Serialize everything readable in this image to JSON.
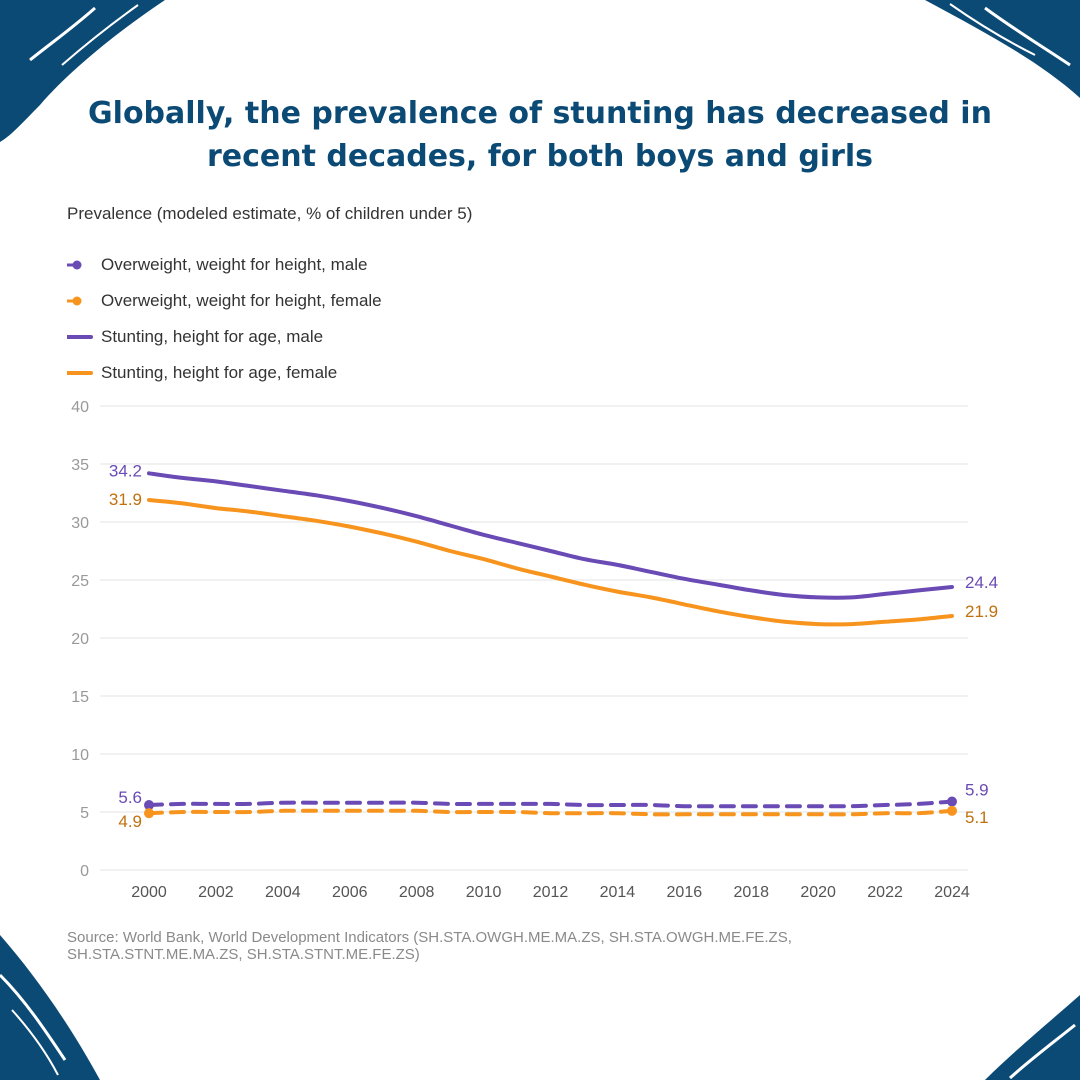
{
  "colors": {
    "brand": "#0b4a75",
    "male": "#6a4bb5",
    "female": "#f7941d",
    "female_label": "#c0700e",
    "grid": "#e3e3e3",
    "axis_text": "#999999"
  },
  "headline": "Globally, the prevalence of stunting has decreased in recent decades, for both boys and girls",
  "source": "Source: World Bank, World Development Indicators (SH.STA.OWGH.ME.MA.ZS, SH.STA.OWGH.ME.FE.ZS, SH.STA.STNT.ME.MA.ZS, SH.STA.STNT.ME.FE.ZS)",
  "chart_data": {
    "type": "line",
    "title": "",
    "subtitle": "Prevalence (modeled estimate, % of children under 5)",
    "xlabel": "",
    "ylabel": "",
    "ylim": [
      0,
      40
    ],
    "xlim": [
      2000,
      2024
    ],
    "y_ticks": [
      "0",
      "5",
      "10",
      "15",
      "20",
      "25",
      "30",
      "35",
      "40"
    ],
    "x_ticks": [
      "2000",
      "2002",
      "2004",
      "2006",
      "2008",
      "2010",
      "2012",
      "2014",
      "2016",
      "2018",
      "2020",
      "2022",
      "2024"
    ],
    "grid": true,
    "legend_position": "top-left",
    "x": [
      2000,
      2001,
      2002,
      2003,
      2004,
      2005,
      2006,
      2007,
      2008,
      2009,
      2010,
      2011,
      2012,
      2013,
      2014,
      2015,
      2016,
      2017,
      2018,
      2019,
      2020,
      2021,
      2022,
      2023,
      2024
    ],
    "series": [
      {
        "name": "Overweight, weight for height, male",
        "style": "dashed-marker",
        "color": "#6a4bb5",
        "values": [
          5.6,
          5.7,
          5.7,
          5.7,
          5.8,
          5.8,
          5.8,
          5.8,
          5.8,
          5.7,
          5.7,
          5.7,
          5.7,
          5.6,
          5.6,
          5.6,
          5.5,
          5.5,
          5.5,
          5.5,
          5.5,
          5.5,
          5.6,
          5.7,
          5.9
        ],
        "start_label": "5.6",
        "end_label": "5.9"
      },
      {
        "name": "Overweight, weight for height, female",
        "style": "dashed-marker",
        "color": "#f7941d",
        "values": [
          4.9,
          5.0,
          5.0,
          5.0,
          5.1,
          5.1,
          5.1,
          5.1,
          5.1,
          5.0,
          5.0,
          5.0,
          4.9,
          4.9,
          4.9,
          4.8,
          4.8,
          4.8,
          4.8,
          4.8,
          4.8,
          4.8,
          4.9,
          4.9,
          5.1
        ],
        "start_label": "4.9",
        "end_label": "5.1"
      },
      {
        "name": "Stunting, height for age, male",
        "style": "solid",
        "color": "#6a4bb5",
        "values": [
          34.2,
          33.8,
          33.5,
          33.1,
          32.7,
          32.3,
          31.8,
          31.2,
          30.5,
          29.7,
          28.9,
          28.2,
          27.5,
          26.8,
          26.3,
          25.7,
          25.1,
          24.6,
          24.1,
          23.7,
          23.5,
          23.5,
          23.8,
          24.1,
          24.4
        ],
        "start_label": "34.2",
        "end_label": "24.4"
      },
      {
        "name": "Stunting, height for age, female",
        "style": "solid",
        "color": "#f7941d",
        "values": [
          31.9,
          31.6,
          31.2,
          30.9,
          30.5,
          30.1,
          29.6,
          29.0,
          28.3,
          27.5,
          26.8,
          26.0,
          25.3,
          24.6,
          24.0,
          23.5,
          22.9,
          22.3,
          21.8,
          21.4,
          21.2,
          21.2,
          21.4,
          21.6,
          21.9
        ],
        "start_label": "31.9",
        "end_label": "21.9"
      }
    ]
  }
}
